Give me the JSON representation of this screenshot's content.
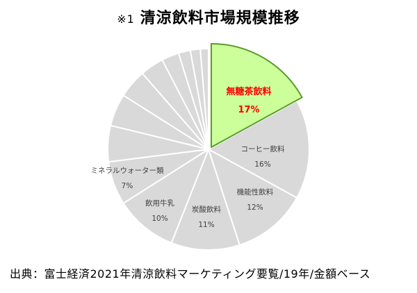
{
  "title": {
    "prefix": "※1",
    "text": "清涼飲料市場規模推移"
  },
  "source": "出典：富士経済2021年清涼飲料マーケティング要覧/19年/金額ベース",
  "colors": {
    "highlight_fill": "#ccff99",
    "highlight_stroke": "#5b9a2e",
    "highlight_text": "#ff0000",
    "slice_fill": "#d9d9d9",
    "slice_stroke": "#ffffff",
    "label_text": "#404040"
  },
  "chart_data": {
    "type": "pie",
    "title": "清涼飲料市場規模推移",
    "unit": "%",
    "start": "12 o'clock, clockwise",
    "slices": [
      {
        "name": "無糖茶飲料",
        "value": 17,
        "label_value": "17%",
        "highlight": true
      },
      {
        "name": "コーヒー飲料",
        "value": 16,
        "label_value": "16%"
      },
      {
        "name": "機能性飲料",
        "value": 12,
        "label_value": "12%"
      },
      {
        "name": "炭酸飲料",
        "value": 11,
        "label_value": "11%"
      },
      {
        "name": "飲用牛乳",
        "value": 10,
        "label_value": "10%"
      },
      {
        "name": "ミネラルウォーター類",
        "value": 7,
        "label_value": "7%"
      },
      {
        "name": "",
        "value": 5.8
      },
      {
        "name": "",
        "value": 5.2
      },
      {
        "name": "",
        "value": 4.6
      },
      {
        "name": "",
        "value": 3.8
      },
      {
        "name": "",
        "value": 2.8
      },
      {
        "name": "",
        "value": 1.9
      },
      {
        "name": "",
        "value": 1.6
      },
      {
        "name": "",
        "value": 1.3
      }
    ]
  }
}
